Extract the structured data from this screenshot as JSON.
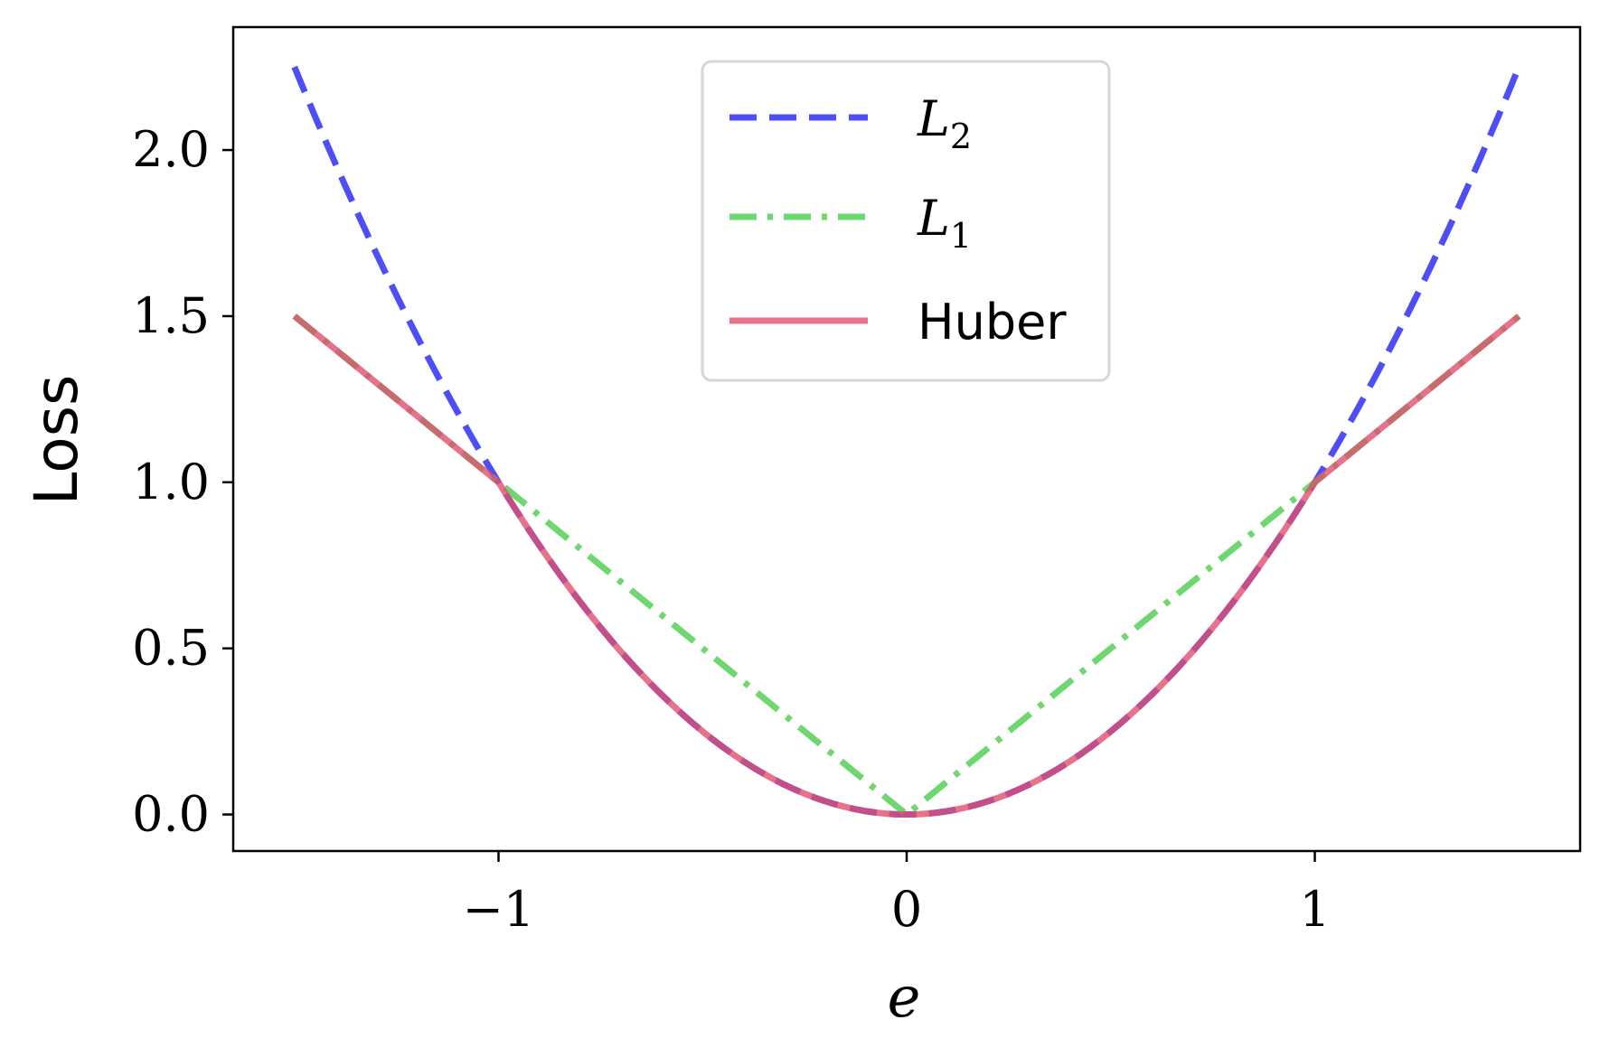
{
  "chart_data": {
    "type": "line",
    "xlabel": "e",
    "ylabel": "Loss",
    "xlim": [
      -1.65,
      1.65
    ],
    "ylim": [
      -0.11,
      2.37
    ],
    "x_ticks": [
      -1,
      0,
      1
    ],
    "x_tick_labels": [
      "−1",
      "0",
      "1"
    ],
    "y_ticks": [
      0.0,
      0.5,
      1.0,
      1.5,
      2.0
    ],
    "y_tick_labels": [
      "0.0",
      "0.5",
      "1.0",
      "1.5",
      "2.0"
    ],
    "grid": false,
    "legend_position": "top-center",
    "series": [
      {
        "name": "L2",
        "legend_main": "L",
        "legend_sub": "2",
        "color": "#3b3bf5",
        "style": "dashed",
        "x": [
          -1.5,
          -1.25,
          -1.0,
          -0.75,
          -0.5,
          -0.25,
          0.0,
          0.25,
          0.5,
          0.75,
          1.0,
          1.25,
          1.5
        ],
        "y": [
          2.25,
          1.5625,
          1.0,
          0.5625,
          0.25,
          0.0625,
          0.0,
          0.0625,
          0.25,
          0.5625,
          1.0,
          1.5625,
          2.25
        ]
      },
      {
        "name": "L1",
        "legend_main": "L",
        "legend_sub": "1",
        "color": "#5fd35f",
        "style": "dashdot",
        "x": [
          -1.5,
          -1.0,
          -0.5,
          0.0,
          0.5,
          1.0,
          1.5
        ],
        "y": [
          1.5,
          1.0,
          0.5,
          0.0,
          0.5,
          1.0,
          1.5
        ]
      },
      {
        "name": "Huber",
        "legend_main": "Huber",
        "legend_sub": "",
        "color": "#e0506e",
        "style": "solid",
        "x": [
          -1.5,
          -1.25,
          -1.0,
          -0.75,
          -0.5,
          -0.25,
          0.0,
          0.25,
          0.5,
          0.75,
          1.0,
          1.25,
          1.5
        ],
        "y": [
          1.5,
          1.25,
          1.0,
          0.5625,
          0.25,
          0.0625,
          0.0,
          0.0625,
          0.25,
          0.5625,
          1.0,
          1.25,
          1.5
        ]
      }
    ]
  }
}
